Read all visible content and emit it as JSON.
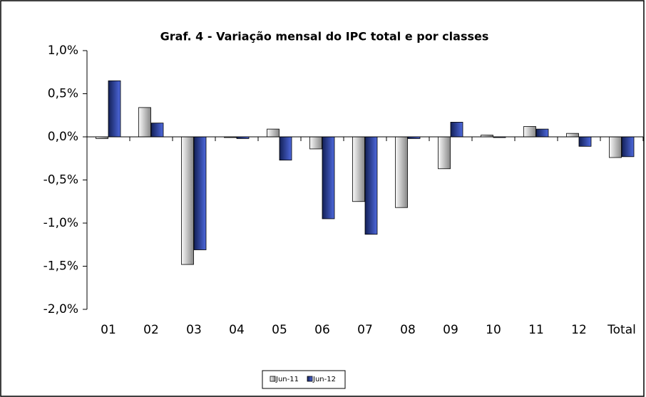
{
  "chart_data": {
    "type": "bar",
    "title": "Graf. 4 - Variação mensal do IPC total e por classes",
    "categories": [
      "01",
      "02",
      "03",
      "04",
      "05",
      "06",
      "07",
      "08",
      "09",
      "10",
      "11",
      "12",
      "Total"
    ],
    "series": [
      {
        "name": "Jun-11",
        "color": "#d0d0d0",
        "values": [
          -0.02,
          0.34,
          -1.48,
          0.0,
          0.09,
          -0.14,
          -0.75,
          -0.82,
          -0.37,
          0.02,
          0.12,
          0.04,
          -0.24
        ]
      },
      {
        "name": "Jun-12",
        "color": "#2f4fd8",
        "values": [
          0.65,
          0.16,
          -1.31,
          -0.02,
          -0.27,
          -0.95,
          -1.13,
          -0.02,
          0.17,
          0.0,
          0.09,
          -0.11,
          -0.23
        ]
      }
    ],
    "ylim": [
      -2.0,
      1.0
    ],
    "yticks": [
      {
        "value": -2.0,
        "label": "-2,0%"
      },
      {
        "value": -1.5,
        "label": "-1,5%"
      },
      {
        "value": -1.0,
        "label": "-1,0%"
      },
      {
        "value": -0.5,
        "label": "-0,5%"
      },
      {
        "value": 0.0,
        "label": "0,0%"
      },
      {
        "value": 0.5,
        "label": "0,5%"
      },
      {
        "value": 1.0,
        "label": "1,0%"
      }
    ],
    "grid": false,
    "legend": "bottom"
  }
}
